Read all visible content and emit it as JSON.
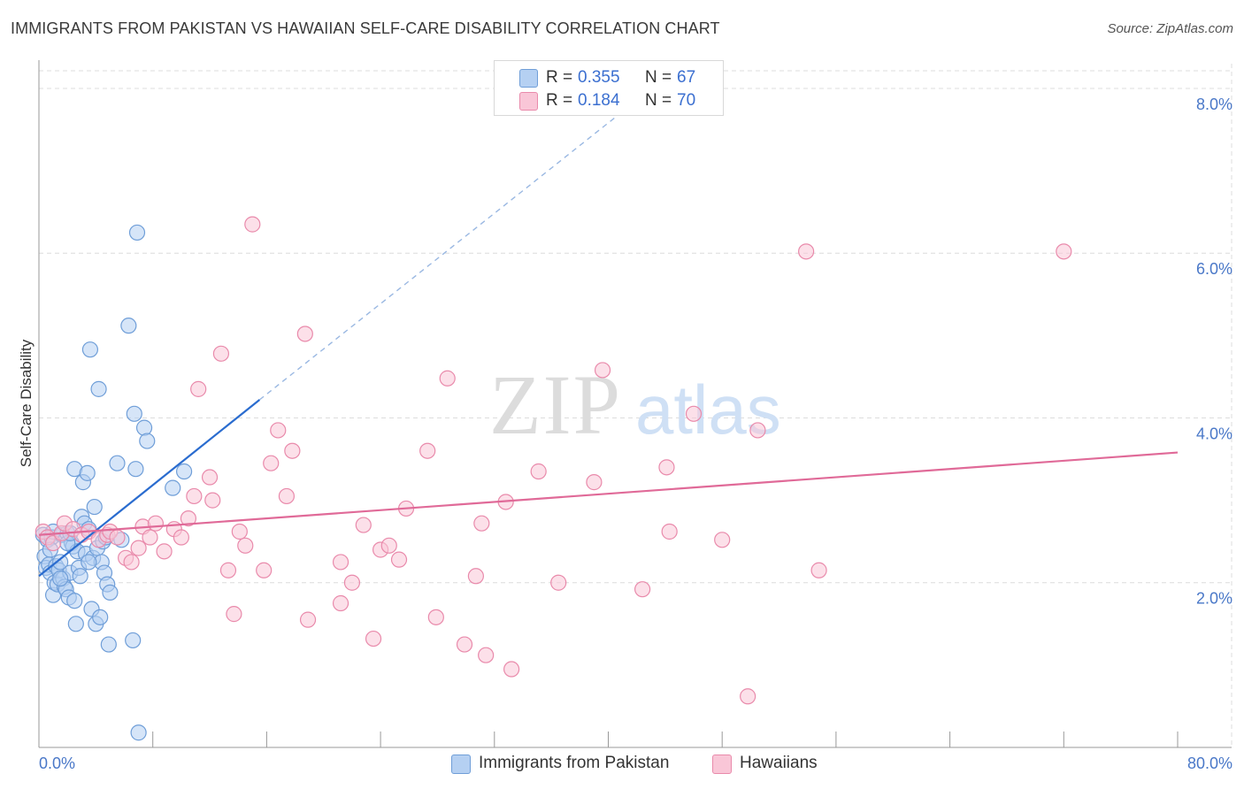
{
  "title": "IMMIGRANTS FROM PAKISTAN VS HAWAIIAN SELF-CARE DISABILITY CORRELATION CHART",
  "source": "Source: ZipAtlas.com",
  "watermark": {
    "zip": "ZIP",
    "atlas": "atlas"
  },
  "colors": {
    "blue_fill": "#b5d0f2",
    "blue_stroke": "#6f9ed8",
    "blue_line": "#2a6ccf",
    "pink_fill": "#f9c6d7",
    "pink_stroke": "#e98aab",
    "pink_line": "#e06a98",
    "grid": "#dcdcdc",
    "tick_text": "#4a78c8"
  },
  "legend": {
    "rows": [
      {
        "r_label": "R =",
        "r_value": "0.355",
        "n_label": "N =",
        "n_value": "67"
      },
      {
        "r_label": "R =",
        "r_value": "0.184",
        "n_label": "N =",
        "n_value": "70"
      }
    ]
  },
  "bottom_legend": {
    "series1": "Immigrants from Pakistan",
    "series2": "Hawaiians"
  },
  "chart_data": {
    "type": "scatter",
    "title": "IMMIGRANTS FROM PAKISTAN VS HAWAIIAN SELF-CARE DISABILITY CORRELATION CHART",
    "xlabel": "",
    "ylabel": "Self-Care Disability",
    "xlim": [
      0,
      80
    ],
    "ylim": [
      0,
      8.3
    ],
    "x_tick_labels": [
      "0.0%",
      "80.0%"
    ],
    "y_ticks": [
      2,
      4,
      6,
      8
    ],
    "y_tick_labels": [
      "2.0%",
      "4.0%",
      "6.0%",
      "8.0%"
    ],
    "grid": true,
    "legend_position": "top-center",
    "series": [
      {
        "name": "Immigrants from Pakistan",
        "R": 0.355,
        "N": 67,
        "trend": {
          "x0": 0,
          "y0": 2.08,
          "x1": 15.5,
          "y1": 4.22,
          "dashed_to_x": 40.5,
          "dashed_to_y": 7.65
        },
        "points": [
          [
            0.3,
            2.58
          ],
          [
            0.4,
            2.32
          ],
          [
            0.5,
            2.18
          ],
          [
            0.6,
            2.52
          ],
          [
            0.7,
            2.22
          ],
          [
            0.8,
            2.12
          ],
          [
            0.9,
            2.55
          ],
          [
            1.0,
            1.85
          ],
          [
            1.1,
            2.0
          ],
          [
            1.2,
            2.2
          ],
          [
            1.3,
            1.98
          ],
          [
            1.4,
            2.15
          ],
          [
            1.5,
            2.25
          ],
          [
            1.6,
            2.58
          ],
          [
            1.7,
            2.05
          ],
          [
            1.8,
            1.95
          ],
          [
            1.9,
            1.92
          ],
          [
            2.0,
            2.6
          ],
          [
            2.1,
            1.82
          ],
          [
            2.2,
            2.12
          ],
          [
            2.3,
            2.48
          ],
          [
            2.4,
            2.44
          ],
          [
            2.5,
            3.38
          ],
          [
            2.6,
            1.5
          ],
          [
            2.7,
            2.38
          ],
          [
            2.8,
            2.18
          ],
          [
            2.9,
            2.08
          ],
          [
            3.0,
            2.8
          ],
          [
            3.1,
            3.22
          ],
          [
            3.2,
            2.72
          ],
          [
            3.3,
            2.35
          ],
          [
            3.4,
            3.33
          ],
          [
            3.5,
            2.65
          ],
          [
            3.6,
            4.83
          ],
          [
            3.7,
            1.68
          ],
          [
            3.8,
            2.3
          ],
          [
            3.9,
            2.92
          ],
          [
            4.0,
            1.5
          ],
          [
            4.1,
            2.42
          ],
          [
            4.2,
            4.35
          ],
          [
            4.3,
            1.58
          ],
          [
            4.4,
            2.25
          ],
          [
            4.5,
            2.5
          ],
          [
            4.6,
            2.12
          ],
          [
            4.7,
            2.55
          ],
          [
            4.8,
            1.98
          ],
          [
            4.9,
            1.25
          ],
          [
            5.0,
            1.88
          ],
          [
            5.5,
            3.45
          ],
          [
            5.8,
            2.52
          ],
          [
            6.3,
            5.12
          ],
          [
            6.6,
            1.3
          ],
          [
            6.7,
            4.05
          ],
          [
            6.8,
            3.38
          ],
          [
            6.9,
            6.25
          ],
          [
            7.0,
            0.18
          ],
          [
            7.4,
            3.88
          ],
          [
            7.6,
            3.72
          ],
          [
            9.4,
            3.15
          ],
          [
            10.2,
            3.35
          ],
          [
            1.0,
            2.62
          ],
          [
            2.0,
            2.48
          ],
          [
            3.5,
            2.25
          ],
          [
            1.5,
            2.05
          ],
          [
            2.5,
            1.78
          ],
          [
            0.8,
            2.4
          ],
          [
            2.2,
            2.6
          ]
        ]
      },
      {
        "name": "Hawaiians",
        "R": 0.184,
        "N": 70,
        "trend": {
          "x0": 0,
          "y0": 2.58,
          "x1": 80,
          "y1": 3.58
        },
        "points": [
          [
            0.3,
            2.62
          ],
          [
            0.6,
            2.55
          ],
          [
            1.0,
            2.48
          ],
          [
            1.6,
            2.6
          ],
          [
            1.8,
            2.72
          ],
          [
            2.4,
            2.65
          ],
          [
            3.0,
            2.58
          ],
          [
            3.5,
            2.62
          ],
          [
            4.2,
            2.52
          ],
          [
            4.8,
            2.58
          ],
          [
            5.0,
            2.62
          ],
          [
            5.5,
            2.55
          ],
          [
            6.1,
            2.3
          ],
          [
            6.5,
            2.25
          ],
          [
            7.0,
            2.42
          ],
          [
            7.3,
            2.68
          ],
          [
            7.8,
            2.55
          ],
          [
            8.2,
            2.72
          ],
          [
            8.8,
            2.38
          ],
          [
            9.5,
            2.65
          ],
          [
            10.0,
            2.55
          ],
          [
            10.5,
            2.78
          ],
          [
            10.9,
            3.05
          ],
          [
            11.2,
            4.35
          ],
          [
            12.0,
            3.28
          ],
          [
            12.2,
            3.0
          ],
          [
            12.8,
            4.78
          ],
          [
            13.3,
            2.15
          ],
          [
            13.7,
            1.62
          ],
          [
            14.1,
            2.62
          ],
          [
            14.5,
            2.45
          ],
          [
            15.0,
            6.35
          ],
          [
            15.8,
            2.15
          ],
          [
            16.3,
            3.45
          ],
          [
            16.8,
            3.85
          ],
          [
            17.4,
            3.05
          ],
          [
            17.8,
            3.6
          ],
          [
            18.7,
            5.02
          ],
          [
            18.9,
            1.55
          ],
          [
            21.2,
            2.25
          ],
          [
            21.2,
            1.75
          ],
          [
            22.0,
            2.0
          ],
          [
            22.8,
            2.7
          ],
          [
            23.5,
            1.32
          ],
          [
            24.0,
            2.4
          ],
          [
            24.6,
            2.45
          ],
          [
            25.3,
            2.28
          ],
          [
            25.8,
            2.9
          ],
          [
            27.3,
            3.6
          ],
          [
            27.9,
            1.58
          ],
          [
            28.7,
            4.48
          ],
          [
            29.9,
            1.25
          ],
          [
            30.7,
            2.08
          ],
          [
            31.1,
            2.72
          ],
          [
            31.4,
            1.12
          ],
          [
            32.8,
            2.98
          ],
          [
            33.2,
            0.95
          ],
          [
            35.1,
            3.35
          ],
          [
            36.5,
            2.0
          ],
          [
            39.0,
            3.22
          ],
          [
            39.6,
            4.58
          ],
          [
            42.4,
            1.92
          ],
          [
            44.1,
            3.4
          ],
          [
            44.3,
            2.62
          ],
          [
            46.0,
            4.05
          ],
          [
            48.0,
            2.52
          ],
          [
            49.8,
            0.62
          ],
          [
            50.5,
            3.85
          ],
          [
            53.9,
            6.02
          ],
          [
            54.8,
            2.15
          ]
        ]
      }
    ],
    "extra_points_note": "Hawaiians also include a point at (72.0, 6.02)"
  }
}
